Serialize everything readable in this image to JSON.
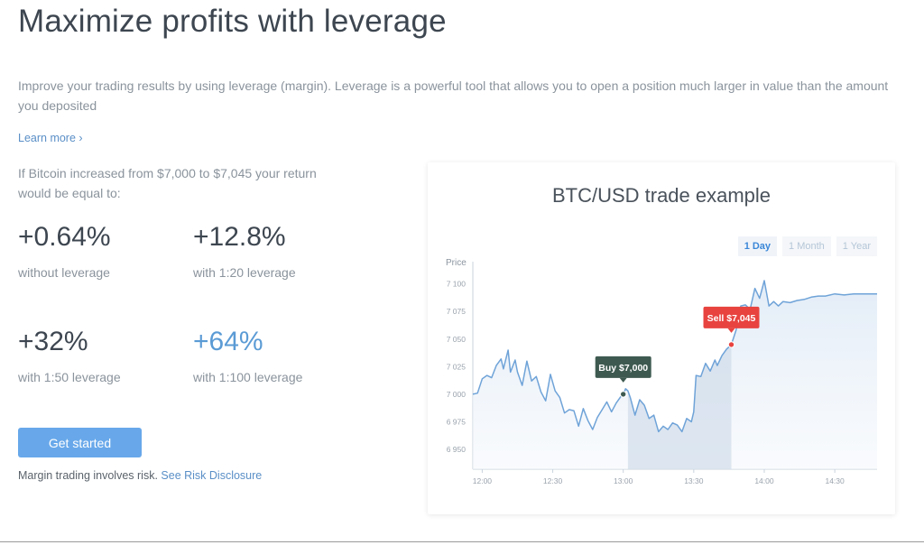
{
  "header": {
    "title": "Maximize profits with leverage",
    "intro": "Improve your trading results by using leverage (margin). Leverage is a powerful tool that allows you to open a position much larger in value than the amount you deposited",
    "learn_more": "Learn more ›"
  },
  "example": {
    "text": "If Bitcoin increased from $7,000 to $7,045 your return would be equal to:",
    "stats": [
      {
        "value": "+0.64%",
        "label": "without leverage"
      },
      {
        "value": "+12.8%",
        "label": "with 1:20 leverage"
      },
      {
        "value": "+32%",
        "label": "with 1:50 leverage"
      },
      {
        "value": "+64%",
        "label": "with 1:100 leverage"
      }
    ],
    "cta_label": "Get started",
    "risk_text": "Margin trading involves risk.",
    "risk_link": "See Risk Disclosure"
  },
  "colors": {
    "accent": "#5b9bd5",
    "button": "#68a8ea",
    "line": "#6fa3d8",
    "buy_badge": "#3e5a50",
    "sell_badge": "#e8433f"
  },
  "chart_data": {
    "type": "area",
    "title": "BTC/USD trade example",
    "ylabel": "Price",
    "xlabel": "",
    "range_tabs": [
      "1 Day",
      "1 Month",
      "1 Year"
    ],
    "active_range": "1 Day",
    "y_ticks": [
      6950,
      6975,
      7000,
      7025,
      7050,
      7075,
      7100
    ],
    "y_tick_labels": [
      "6 950",
      "6 975",
      "7 000",
      "7 025",
      "7 050",
      "7 075",
      "7 100"
    ],
    "ylim": [
      6932,
      7112
    ],
    "x_ticks": [
      "12:00",
      "12:30",
      "13:00",
      "13:30",
      "14:00",
      "14:30"
    ],
    "x_tick_minutes": [
      0,
      30,
      60,
      90,
      120,
      150
    ],
    "xlim_minutes": [
      -4,
      168
    ],
    "grid": false,
    "series": [
      {
        "minutes": [
          -4,
          -2,
          0,
          2,
          4,
          6,
          8,
          9,
          11,
          12,
          14,
          15,
          17,
          19,
          21,
          23,
          25,
          27,
          29,
          31,
          33,
          35,
          37,
          39,
          41,
          43,
          45,
          47,
          49,
          51,
          53,
          55,
          57,
          59,
          60,
          61,
          62,
          63,
          65,
          67,
          69,
          71,
          73,
          75,
          77,
          79,
          81,
          83,
          85,
          87,
          89,
          90,
          91,
          93,
          95,
          97,
          99,
          100,
          102,
          104,
          106,
          108,
          110,
          112,
          114,
          116,
          118,
          120,
          122,
          124,
          126,
          128,
          131,
          134,
          137,
          140,
          143,
          146,
          150,
          154,
          158,
          163,
          166,
          168
        ],
        "values": [
          7000,
          7001,
          7014,
          7017,
          7015,
          7026,
          7032,
          7023,
          7040,
          7020,
          7031,
          7020,
          7008,
          7030,
          7012,
          7016,
          7002,
          6994,
          7018,
          7003,
          6997,
          6983,
          6986,
          6985,
          6971,
          6987,
          6976,
          6968,
          6979,
          6986,
          6993,
          6984,
          6992,
          6998,
          7000,
          7005,
          7003,
          6997,
          6981,
          6995,
          6990,
          6978,
          6981,
          6966,
          6971,
          6968,
          6974,
          6972,
          6966,
          6978,
          6975,
          6984,
          7017,
          7016,
          7028,
          7021,
          7031,
          7026,
          7035,
          7041,
          7045,
          7058,
          7080,
          7081,
          7077,
          7096,
          7087,
          7103,
          7080,
          7084,
          7080,
          7084,
          7083,
          7085,
          7086,
          7088,
          7089,
          7089,
          7091,
          7090,
          7091,
          7091,
          7091,
          7091
        ]
      }
    ],
    "annotations": [
      {
        "label": "Buy $7,000",
        "minute": 60,
        "value": 7000,
        "color": "#3e5a50"
      },
      {
        "label": "Sell $7,045",
        "minute": 106,
        "value": 7045,
        "color": "#e8433f"
      }
    ],
    "highlight_range_minutes": [
      62,
      106
    ]
  }
}
